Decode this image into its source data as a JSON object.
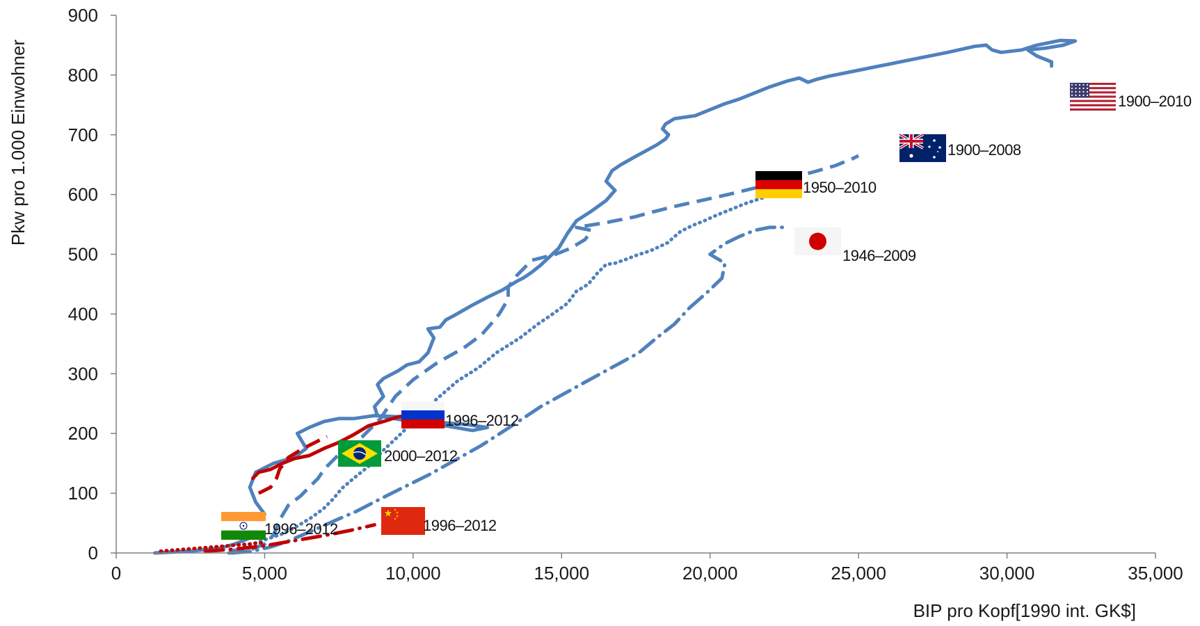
{
  "chart_data": {
    "type": "line",
    "title": "",
    "xlabel": "BIP pro Kopf[1990 int. GK$]",
    "ylabel": "Pkw pro 1.000 Einwohner",
    "xlim": [
      0,
      35000
    ],
    "ylim": [
      0,
      900
    ],
    "x_ticks": [
      0,
      5000,
      10000,
      15000,
      20000,
      25000,
      30000,
      35000
    ],
    "x_tick_labels": [
      "0",
      "5,000",
      "10,000",
      "15,000",
      "20,000",
      "25,000",
      "30,000",
      "35,000"
    ],
    "y_ticks": [
      0,
      100,
      200,
      300,
      400,
      500,
      600,
      700,
      800,
      900
    ],
    "y_tick_labels": [
      "0",
      "100",
      "200",
      "300",
      "400",
      "500",
      "600",
      "700",
      "800",
      "900"
    ],
    "grid": false,
    "legend": "flags next to line ends",
    "series": [
      {
        "country": "USA",
        "period": "1900–2010",
        "color": "#4f81bd",
        "style": "solid",
        "icon": "usa-flag",
        "points": [
          [
            1300,
            0
          ],
          [
            2500,
            3
          ],
          [
            3500,
            8
          ],
          [
            4000,
            15
          ],
          [
            4500,
            25
          ],
          [
            4800,
            45
          ],
          [
            5000,
            65
          ],
          [
            4700,
            85
          ],
          [
            4500,
            110
          ],
          [
            4700,
            135
          ],
          [
            5300,
            150
          ],
          [
            6000,
            160
          ],
          [
            6400,
            175
          ],
          [
            6100,
            200
          ],
          [
            6500,
            210
          ],
          [
            7000,
            220
          ],
          [
            7500,
            225
          ],
          [
            8000,
            225
          ],
          [
            8700,
            230
          ],
          [
            9500,
            228
          ],
          [
            10500,
            225
          ],
          [
            11000,
            218
          ],
          [
            11800,
            215
          ],
          [
            12500,
            210
          ],
          [
            12000,
            205
          ],
          [
            11200,
            212
          ],
          [
            10300,
            218
          ],
          [
            9600,
            223
          ],
          [
            8800,
            230
          ],
          [
            8700,
            245
          ],
          [
            9000,
            262
          ],
          [
            8800,
            282
          ],
          [
            9000,
            292
          ],
          [
            9500,
            305
          ],
          [
            9800,
            315
          ],
          [
            10200,
            320
          ],
          [
            10500,
            335
          ],
          [
            10700,
            360
          ],
          [
            10500,
            375
          ],
          [
            10900,
            378
          ],
          [
            11100,
            390
          ],
          [
            11400,
            398
          ],
          [
            12000,
            415
          ],
          [
            12500,
            428
          ],
          [
            13000,
            440
          ],
          [
            13500,
            455
          ],
          [
            13700,
            460
          ],
          [
            14000,
            470
          ],
          [
            14300,
            482
          ],
          [
            14900,
            510
          ],
          [
            15200,
            535
          ],
          [
            15500,
            556
          ],
          [
            16000,
            572
          ],
          [
            16500,
            590
          ],
          [
            16800,
            607
          ],
          [
            16500,
            622
          ],
          [
            16700,
            640
          ],
          [
            17000,
            650
          ],
          [
            17500,
            664
          ],
          [
            17800,
            672
          ],
          [
            18200,
            683
          ],
          [
            18500,
            693
          ],
          [
            18600,
            700
          ],
          [
            18400,
            710
          ],
          [
            18500,
            718
          ],
          [
            18800,
            727
          ],
          [
            19500,
            732
          ],
          [
            20000,
            742
          ],
          [
            20500,
            752
          ],
          [
            21000,
            760
          ],
          [
            21600,
            772
          ],
          [
            22000,
            780
          ],
          [
            22600,
            790
          ],
          [
            23000,
            795
          ],
          [
            23300,
            788
          ],
          [
            23600,
            793
          ],
          [
            24000,
            798
          ],
          [
            25000,
            808
          ],
          [
            26000,
            818
          ],
          [
            27000,
            828
          ],
          [
            28000,
            838
          ],
          [
            28900,
            848
          ],
          [
            29300,
            850
          ],
          [
            29500,
            842
          ],
          [
            29800,
            838
          ],
          [
            30500,
            842
          ],
          [
            31000,
            850
          ],
          [
            31800,
            858
          ],
          [
            32300,
            857
          ],
          [
            31900,
            850
          ],
          [
            31300,
            845
          ],
          [
            30700,
            842
          ],
          [
            31000,
            832
          ],
          [
            31500,
            822
          ],
          [
            31500,
            815
          ]
        ]
      },
      {
        "country": "Australien",
        "period": "1900–2008",
        "color": "#4f81bd",
        "style": "dashed",
        "icon": "australia-flag",
        "points": [
          [
            3800,
            0
          ],
          [
            4500,
            5
          ],
          [
            5000,
            15
          ],
          [
            5300,
            30
          ],
          [
            5500,
            55
          ],
          [
            5800,
            80
          ],
          [
            6200,
            95
          ],
          [
            6500,
            110
          ],
          [
            6800,
            125
          ],
          [
            7000,
            140
          ],
          [
            7300,
            155
          ],
          [
            7700,
            175
          ],
          [
            8300,
            195
          ],
          [
            8900,
            225
          ],
          [
            9400,
            262
          ],
          [
            10000,
            290
          ],
          [
            10800,
            318
          ],
          [
            11700,
            343
          ],
          [
            12300,
            365
          ],
          [
            12600,
            382
          ],
          [
            12900,
            400
          ],
          [
            13200,
            425
          ],
          [
            13200,
            445
          ],
          [
            13500,
            465
          ],
          [
            14000,
            490
          ],
          [
            14800,
            500
          ],
          [
            15300,
            510
          ],
          [
            15800,
            525
          ],
          [
            16000,
            540
          ],
          [
            15500,
            545
          ],
          [
            16500,
            553
          ],
          [
            17500,
            563
          ],
          [
            18000,
            570
          ],
          [
            18800,
            580
          ],
          [
            19700,
            590
          ],
          [
            20600,
            600
          ],
          [
            21600,
            612
          ],
          [
            22500,
            625
          ],
          [
            23500,
            638
          ],
          [
            24200,
            648
          ],
          [
            24800,
            660
          ],
          [
            25000,
            665
          ]
        ]
      },
      {
        "country": "Deutschland",
        "period": "1950–2010",
        "color": "#4f81bd",
        "style": "dotted",
        "icon": "germany-flag",
        "points": [
          [
            3800,
            0
          ],
          [
            4000,
            5
          ],
          [
            4400,
            12
          ],
          [
            5000,
            22
          ],
          [
            5600,
            32
          ],
          [
            6100,
            45
          ],
          [
            6600,
            60
          ],
          [
            7000,
            75
          ],
          [
            7300,
            90
          ],
          [
            7600,
            108
          ],
          [
            8000,
            125
          ],
          [
            8500,
            145
          ],
          [
            9000,
            172
          ],
          [
            9600,
            200
          ],
          [
            10200,
            230
          ],
          [
            10800,
            258
          ],
          [
            11500,
            288
          ],
          [
            12200,
            310
          ],
          [
            12800,
            335
          ],
          [
            13600,
            360
          ],
          [
            14200,
            383
          ],
          [
            14700,
            400
          ],
          [
            15200,
            418
          ],
          [
            15500,
            438
          ],
          [
            15900,
            450
          ],
          [
            16200,
            468
          ],
          [
            16500,
            483
          ],
          [
            16800,
            485
          ],
          [
            17200,
            492
          ],
          [
            17500,
            498
          ],
          [
            18000,
            506
          ],
          [
            18600,
            520
          ],
          [
            18700,
            525
          ],
          [
            19000,
            538
          ],
          [
            19400,
            548
          ],
          [
            19800,
            556
          ],
          [
            20200,
            565
          ],
          [
            20700,
            575
          ],
          [
            21200,
            585
          ],
          [
            21800,
            595
          ],
          [
            22300,
            603
          ],
          [
            22800,
            610
          ],
          [
            23000,
            612
          ]
        ]
      },
      {
        "country": "Japan",
        "period": "1946–2009",
        "color": "#4f81bd",
        "style": "dash-dot",
        "icon": "japan-flag",
        "points": [
          [
            3900,
            0
          ],
          [
            4600,
            3
          ],
          [
            5200,
            10
          ],
          [
            5800,
            20
          ],
          [
            6500,
            35
          ],
          [
            7400,
            55
          ],
          [
            8100,
            70
          ],
          [
            8800,
            88
          ],
          [
            9600,
            108
          ],
          [
            10500,
            130
          ],
          [
            11400,
            155
          ],
          [
            12300,
            180
          ],
          [
            13300,
            212
          ],
          [
            14300,
            245
          ],
          [
            15500,
            278
          ],
          [
            16600,
            308
          ],
          [
            17600,
            335
          ],
          [
            18200,
            360
          ],
          [
            18800,
            383
          ],
          [
            19300,
            410
          ],
          [
            19900,
            436
          ],
          [
            20400,
            460
          ],
          [
            20500,
            485
          ],
          [
            20000,
            500
          ],
          [
            20500,
            518
          ],
          [
            21000,
            530
          ],
          [
            21500,
            540
          ],
          [
            22000,
            545
          ],
          [
            22500,
            545
          ]
        ]
      },
      {
        "country": "Russland",
        "period": "1996–2012",
        "color": "#c00000",
        "style": "solid",
        "icon": "russia-flag",
        "points": [
          [
            4600,
            125
          ],
          [
            4800,
            135
          ],
          [
            5200,
            140
          ],
          [
            5600,
            150
          ],
          [
            6000,
            158
          ],
          [
            6500,
            163
          ],
          [
            7000,
            175
          ],
          [
            7500,
            185
          ],
          [
            8000,
            198
          ],
          [
            8500,
            213
          ],
          [
            9000,
            220
          ],
          [
            9500,
            228
          ],
          [
            9800,
            230
          ]
        ]
      },
      {
        "country": "Brasilien",
        "period": "2000–2012",
        "color": "#c00000",
        "style": "dashed",
        "icon": "brazil-flag",
        "points": [
          [
            4800,
            100
          ],
          [
            5200,
            110
          ],
          [
            5400,
            125
          ],
          [
            5500,
            140
          ],
          [
            5800,
            160
          ],
          [
            6300,
            175
          ],
          [
            6700,
            185
          ],
          [
            7100,
            195
          ]
        ]
      },
      {
        "country": "Indien",
        "period": "1996–2012",
        "color": "#c00000",
        "style": "dotted",
        "icon": "india-flag",
        "points": [
          [
            1500,
            3
          ],
          [
            2000,
            5
          ],
          [
            2500,
            7
          ],
          [
            3000,
            9
          ],
          [
            3500,
            11
          ],
          [
            4000,
            13
          ],
          [
            4500,
            15
          ],
          [
            4900,
            17
          ]
        ]
      },
      {
        "country": "China",
        "period": "1996–2012",
        "color": "#c00000",
        "style": "dash-dot",
        "icon": "china-flag",
        "points": [
          [
            3000,
            3
          ],
          [
            3600,
            5
          ],
          [
            4300,
            8
          ],
          [
            5000,
            12
          ],
          [
            5700,
            18
          ],
          [
            6400,
            24
          ],
          [
            7100,
            30
          ],
          [
            7900,
            38
          ],
          [
            8700,
            47
          ]
        ]
      }
    ]
  }
}
